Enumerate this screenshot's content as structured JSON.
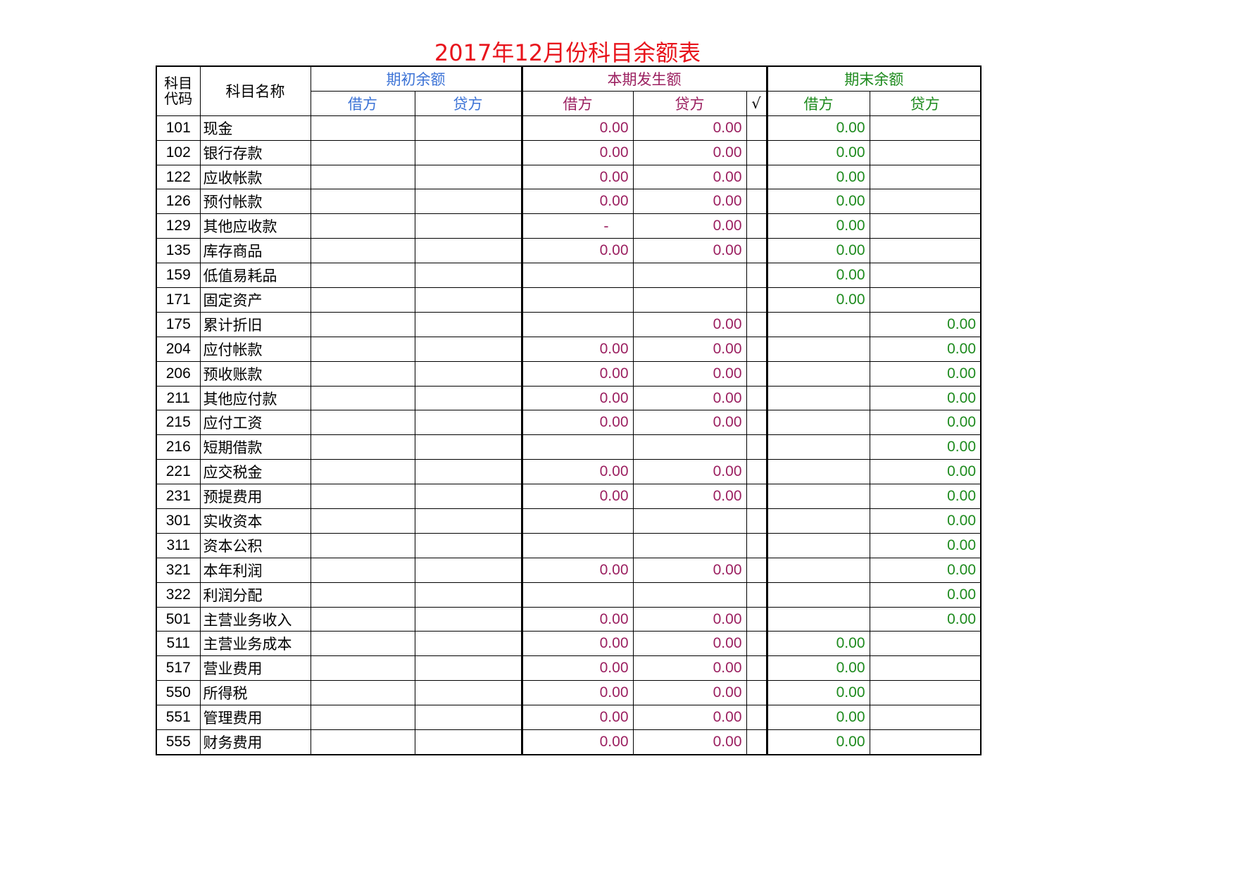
{
  "header": {
    "title": "2017年12月份科目余额表"
  },
  "table": {
    "head": {
      "code": "科目代码",
      "name": "科目名称",
      "opening": "期初余额",
      "period": "本期发生额",
      "ending": "期末余额",
      "sub": [
        "借方",
        "贷方",
        "借方",
        "贷方",
        "√",
        "借方",
        "贷方"
      ]
    },
    "rows": [
      {
        "code": "101",
        "name": "现金",
        "period_debit": "0.00",
        "period_credit": "0.00",
        "end_debit": "0.00"
      },
      {
        "code": "102",
        "name": "银行存款",
        "period_debit": "0.00",
        "period_credit": "0.00",
        "end_debit": "0.00"
      },
      {
        "code": "122",
        "name": "应收帐款",
        "period_debit": "0.00",
        "period_credit": "0.00",
        "end_debit": "0.00"
      },
      {
        "code": "126",
        "name": "预付帐款",
        "period_debit": "0.00",
        "period_credit": "0.00",
        "end_debit": "0.00"
      },
      {
        "code": "129",
        "name": "其他应收款",
        "period_debit": "-",
        "period_credit": "0.00",
        "end_debit": "0.00"
      },
      {
        "code": "135",
        "name": "库存商品",
        "period_debit": "0.00",
        "period_credit": "0.00",
        "end_debit": "0.00"
      },
      {
        "code": "159",
        "name": "低值易耗品",
        "end_debit": "0.00"
      },
      {
        "code": "171",
        "name": "固定资产",
        "end_debit": "0.00"
      },
      {
        "code": "175",
        "name": "累计折旧",
        "period_credit": "0.00",
        "end_credit": "0.00"
      },
      {
        "code": "204",
        "name": "应付帐款",
        "period_debit": "0.00",
        "period_credit": "0.00",
        "end_credit": "0.00"
      },
      {
        "code": "206",
        "name": "预收账款",
        "period_debit": "0.00",
        "period_credit": "0.00",
        "end_credit": "0.00"
      },
      {
        "code": "211",
        "name": "其他应付款",
        "period_debit": "0.00",
        "period_credit": "0.00",
        "end_credit": "0.00"
      },
      {
        "code": "215",
        "name": "应付工资",
        "period_debit": "0.00",
        "period_credit": "0.00",
        "end_credit": "0.00"
      },
      {
        "code": "216",
        "name": "短期借款",
        "end_credit": "0.00"
      },
      {
        "code": "221",
        "name": "应交税金",
        "period_debit": "0.00",
        "period_credit": "0.00",
        "end_credit": "0.00"
      },
      {
        "code": "231",
        "name": "预提费用",
        "period_debit": "0.00",
        "period_credit": "0.00",
        "end_credit": "0.00"
      },
      {
        "code": "301",
        "name": "实收资本",
        "end_credit": "0.00"
      },
      {
        "code": "311",
        "name": "资本公积",
        "end_credit": "0.00"
      },
      {
        "code": "321",
        "name": "本年利润",
        "period_debit": "0.00",
        "period_credit": "0.00",
        "end_credit": "0.00"
      },
      {
        "code": "322",
        "name": "利润分配",
        "end_credit": "0.00"
      },
      {
        "code": "501",
        "name": "主营业务收入",
        "period_debit": "0.00",
        "period_credit": "0.00",
        "end_credit": "0.00"
      },
      {
        "code": "511",
        "name": "主营业务成本",
        "period_debit": "0.00",
        "period_credit": "0.00",
        "end_debit": "0.00"
      },
      {
        "code": "517",
        "name": "营业费用",
        "period_debit": "0.00",
        "period_credit": "0.00",
        "end_debit": "0.00"
      },
      {
        "code": "550",
        "name": "所得税",
        "period_debit": "0.00",
        "period_credit": "0.00",
        "end_debit": "0.00"
      },
      {
        "code": "551",
        "name": "管理费用",
        "period_debit": "0.00",
        "period_credit": "0.00",
        "end_debit": "0.00"
      },
      {
        "code": "555",
        "name": "财务费用",
        "period_debit": "0.00",
        "period_credit": "0.00",
        "end_debit": "0.00"
      }
    ]
  }
}
